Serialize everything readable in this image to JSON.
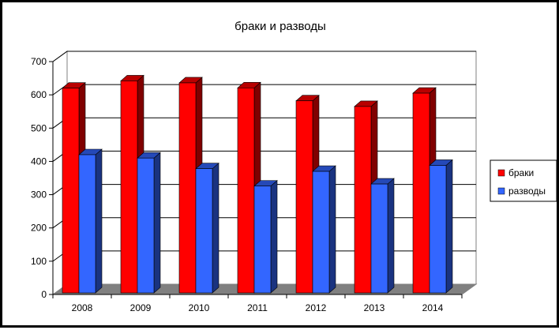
{
  "chart_data": {
    "type": "bar",
    "title": "браки и разводы",
    "xlabel": "",
    "ylabel": "",
    "categories": [
      "2008",
      "2009",
      "2010",
      "2011",
      "2012",
      "2013",
      "2014"
    ],
    "series": [
      {
        "name": "браки",
        "color": "#ff0000",
        "values": [
          620,
          642,
          636,
          621,
          582,
          565,
          605
        ]
      },
      {
        "name": "разводы",
        "color": "#3366ff",
        "values": [
          420,
          410,
          378,
          326,
          370,
          332,
          388
        ]
      }
    ],
    "ylim": [
      0,
      700
    ],
    "yticks": [
      0,
      100,
      200,
      300,
      400,
      500,
      600,
      700
    ],
    "grid": true,
    "legend": "right",
    "style": "3d-clustered-column"
  }
}
